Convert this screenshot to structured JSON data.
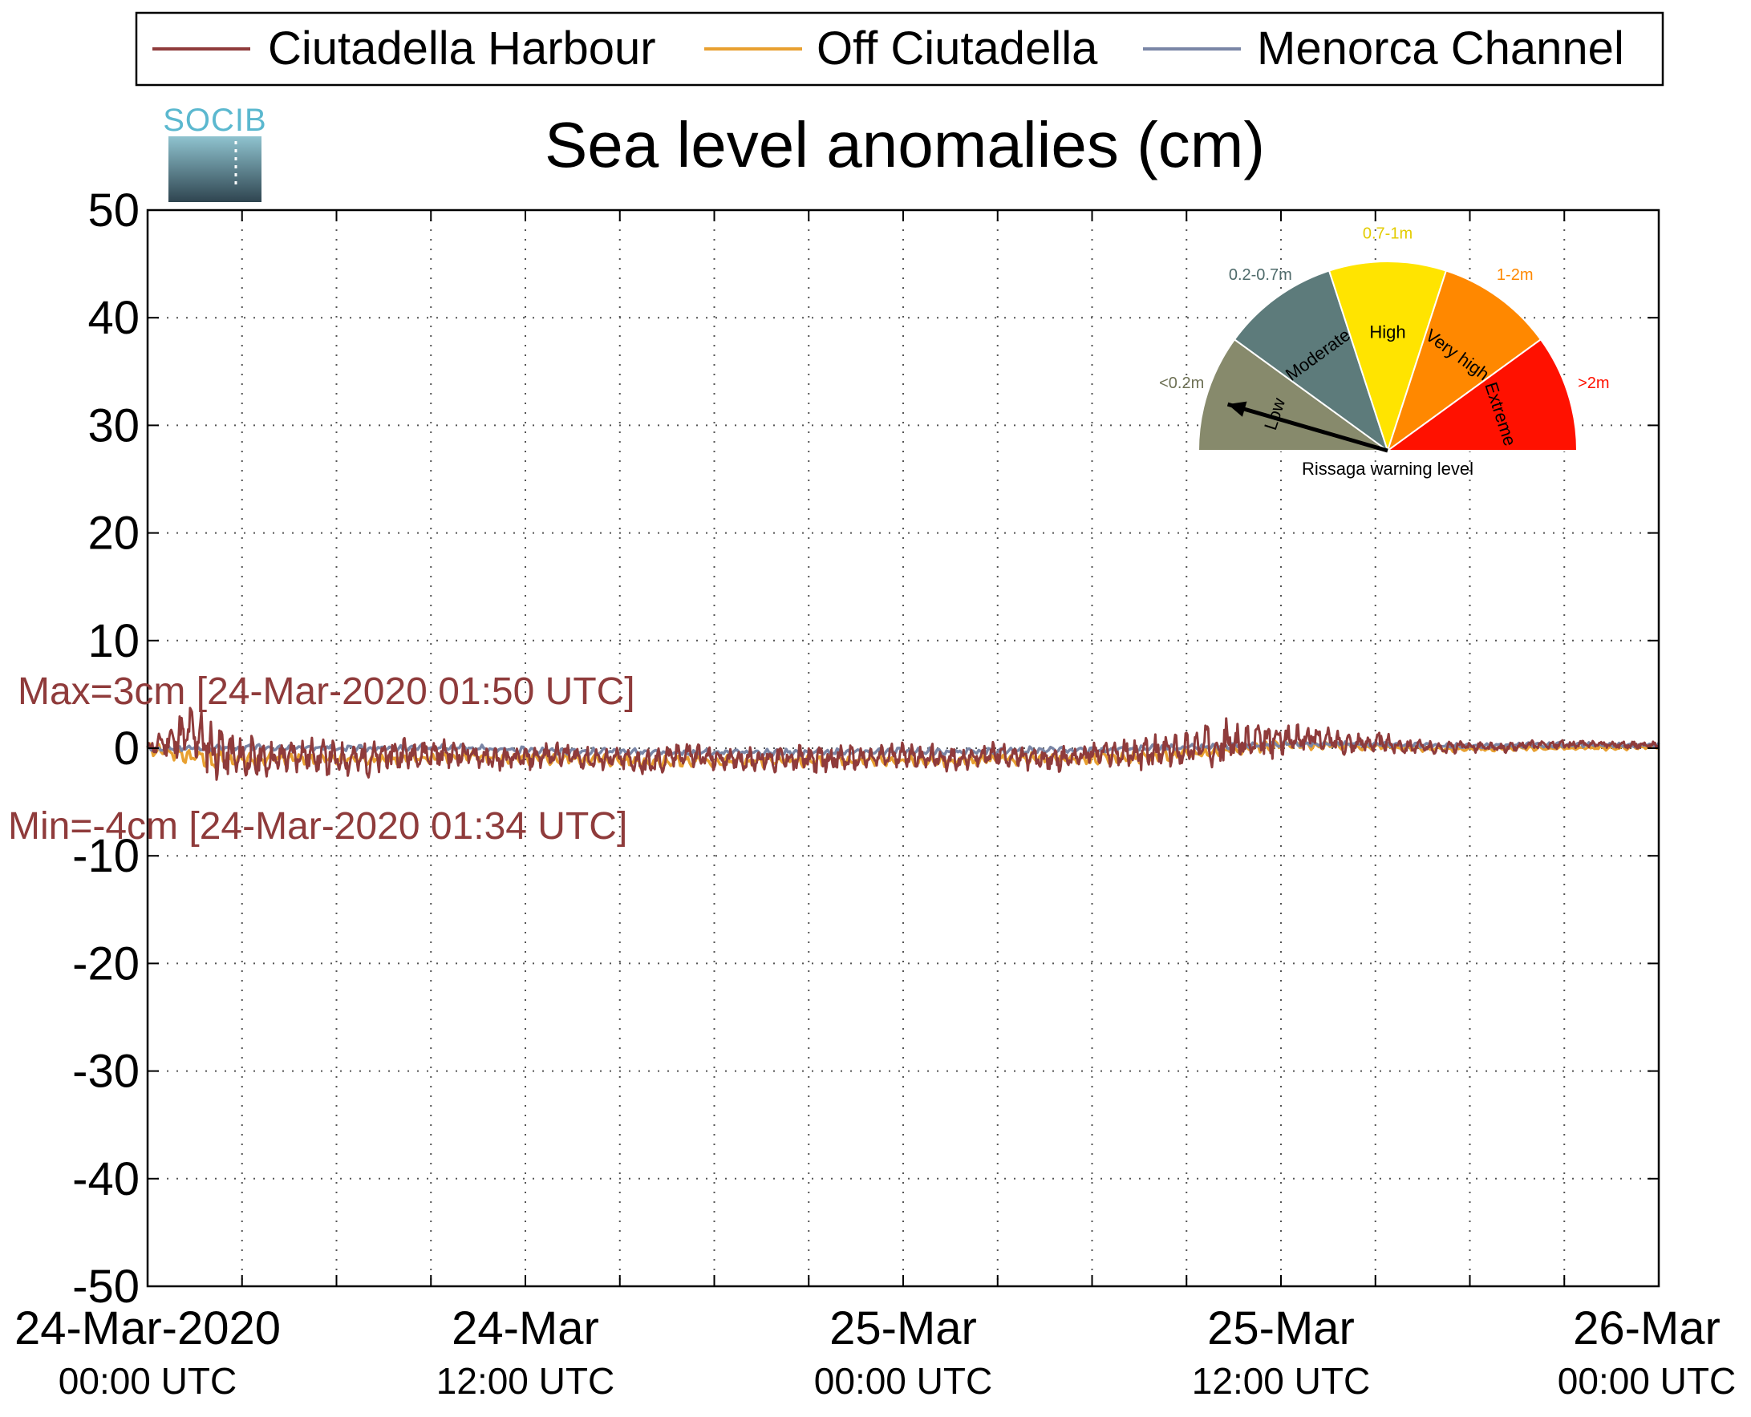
{
  "logo_text": "SOCIB",
  "chart_data": {
    "type": "line",
    "title": "Sea level anomalies (cm)",
    "xlabel": "",
    "ylabel": "",
    "ylim": [
      -50,
      50
    ],
    "yticks": [
      50,
      40,
      30,
      20,
      10,
      0,
      -10,
      -20,
      -30,
      -40,
      -50
    ],
    "xlim_hours": [
      0,
      48
    ],
    "xticks": [
      {
        "hour": 0,
        "date": "24-Mar-2020",
        "time": "00:00 UTC"
      },
      {
        "hour": 12,
        "date": "24-Mar",
        "time": "12:00 UTC"
      },
      {
        "hour": 24,
        "date": "25-Mar",
        "time": "00:00 UTC"
      },
      {
        "hour": 36,
        "date": "25-Mar",
        "time": "12:00 UTC"
      },
      {
        "hour": 48,
        "date": "26-Mar",
        "time": "00:00 UTC"
      }
    ],
    "grid": true,
    "legend_position": "top",
    "series": [
      {
        "name": "Ciutadella Harbour",
        "color": "#8f3b3b",
        "x_hours": [
          0,
          1,
          1.5,
          2,
          3,
          4,
          5,
          6,
          7,
          8,
          9,
          10,
          11,
          12,
          13,
          14,
          15,
          16,
          17,
          18,
          19,
          20,
          21,
          22,
          23,
          24,
          25,
          26,
          27,
          28,
          29,
          30,
          31,
          32,
          33,
          34,
          35,
          36,
          37,
          38,
          39,
          40,
          41,
          42,
          43,
          44,
          45,
          46,
          47,
          48
        ],
        "values": [
          0,
          1,
          1.5,
          0,
          -1,
          -1,
          -0.5,
          -1,
          -1,
          -0.5,
          -0.5,
          -0.5,
          -1,
          -1,
          -0.5,
          -1,
          -1,
          -1.5,
          -0.5,
          -1,
          -1,
          -1,
          -1,
          -1,
          -1,
          -0.5,
          -1,
          -1,
          -0.5,
          -1,
          -1,
          -0.5,
          -0.5,
          -0.5,
          0,
          0.5,
          0.5,
          0.8,
          1,
          0.5,
          0.5,
          0.2,
          0,
          0.2,
          0,
          0.3,
          0.3,
          0.4,
          0.3,
          0.3
        ],
        "amplitude": [
          0.5,
          2,
          2.5,
          2.5,
          2,
          1.5,
          1.5,
          1.5,
          1.5,
          1.5,
          1.2,
          1.2,
          1,
          1,
          1,
          1,
          1,
          1.2,
          1.2,
          1,
          1,
          1.2,
          1.2,
          1.2,
          1,
          1,
          1.2,
          1,
          1,
          1,
          1,
          1,
          1.2,
          1.5,
          1.5,
          2,
          2,
          1.2,
          1,
          1,
          1,
          0.6,
          0.5,
          0.5,
          0.4,
          0.4,
          0.4,
          0.3,
          0.3,
          0.3
        ],
        "max_label": "Max=3cm [24-Mar-2020 01:50 UTC]",
        "min_label": "Min=-4cm [24-Mar-2020 01:34 UTC]"
      },
      {
        "name": "Off Ciutadella",
        "color": "#e8a030",
        "x_hours": [
          0,
          2,
          4,
          6,
          8,
          10,
          12,
          14,
          16,
          18,
          20,
          22,
          24,
          26,
          28,
          30,
          32,
          34,
          36,
          38,
          40,
          42,
          44,
          46,
          48
        ],
        "values": [
          0,
          -1,
          -1,
          -1,
          -1,
          -0.8,
          -1,
          -1,
          -1.2,
          -1.2,
          -1.2,
          -1.2,
          -1.2,
          -1.2,
          -1,
          -1,
          -0.8,
          -0.3,
          0.3,
          0.2,
          0,
          -0.1,
          0,
          0,
          0.1
        ],
        "amplitude": [
          0.5,
          1,
          0.6,
          0.6,
          0.5,
          0.5,
          0.5,
          0.5,
          0.6,
          0.6,
          0.6,
          0.6,
          0.5,
          0.5,
          0.5,
          0.5,
          0.5,
          0.5,
          0.4,
          0.3,
          0.3,
          0.2,
          0.2,
          0.2,
          0.2
        ]
      },
      {
        "name": "Menorca Channel",
        "color": "#7a86a6",
        "x_hours": [
          0,
          2,
          4,
          6,
          8,
          10,
          12,
          14,
          16,
          18,
          20,
          22,
          24,
          26,
          28,
          30,
          32,
          34,
          36,
          38,
          40,
          42,
          44,
          46,
          48
        ],
        "values": [
          0,
          0,
          0,
          0,
          0,
          0,
          -0.2,
          -0.3,
          -0.4,
          -0.4,
          -0.4,
          -0.4,
          -0.3,
          -0.3,
          -0.2,
          -0.2,
          0,
          0.2,
          0.4,
          0.4,
          0.3,
          0.2,
          0.3,
          0.3,
          0.3
        ],
        "amplitude": [
          0.2,
          0.3,
          0.3,
          0.3,
          0.3,
          0.3,
          0.3,
          0.3,
          0.3,
          0.3,
          0.3,
          0.3,
          0.3,
          0.3,
          0.3,
          0.3,
          0.3,
          0.3,
          0.3,
          0.2,
          0.2,
          0.2,
          0.2,
          0.2,
          0.2
        ]
      }
    ],
    "gauge": {
      "caption": "Rissaga warning level",
      "current_level": "Low",
      "sectors": [
        {
          "name": "Low",
          "range": "<0.2m",
          "color": "#878a6c",
          "range_color": "#6e7155"
        },
        {
          "name": "Moderate",
          "range": "0.2-0.7m",
          "color": "#5d7b7b",
          "range_color": "#4f6b6b"
        },
        {
          "name": "High",
          "range": "0.7-1m",
          "color": "#ffe400",
          "range_color": "#e3cc00"
        },
        {
          "name": "Very high",
          "range": "1-2m",
          "color": "#ff8800",
          "range_color": "#ff8800"
        },
        {
          "name": "Extreme",
          "range": ">2m",
          "color": "#ff1100",
          "range_color": "#ff1100"
        }
      ]
    }
  }
}
